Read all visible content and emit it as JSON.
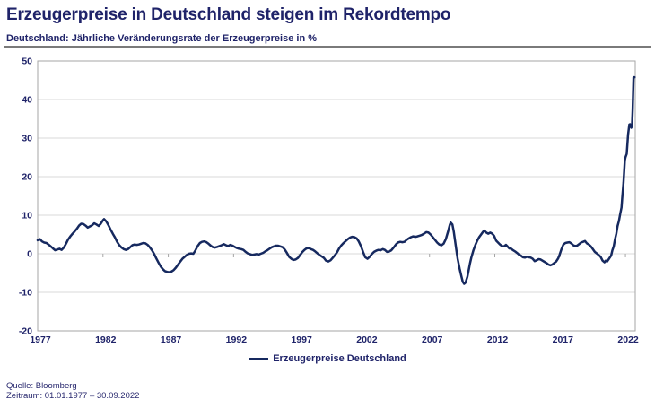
{
  "header": {
    "title": "Erzeugerpreise in Deutschland steigen im Rekordtempo",
    "subtitle": "Deutschland: Jährliche Veränderungsrate der Erzeugerpreise in %"
  },
  "footer": {
    "source": "Quelle: Bloomberg",
    "period": "Zeitraum: 01.01.1977 – 30.09.2022"
  },
  "colors": {
    "navy_text": "#1f2369",
    "line": "#16295f",
    "grid": "#d9d9d9",
    "axis": "#a6a6a6",
    "divider": "#7a7a7a"
  },
  "chart_data": {
    "type": "line",
    "title": "Deutschland: Jährliche Veränderungsrate der Erzeugerpreise in %",
    "legend": "Erzeugerpreise Deutschland",
    "legend_position": "bottom",
    "xlabel": "",
    "ylabel": "",
    "grid": true,
    "xlim": [
      1977,
      2022.75
    ],
    "ylim": [
      -20,
      50
    ],
    "yticks": [
      50,
      40,
      30,
      20,
      10,
      0,
      -10,
      -20
    ],
    "xticks": [
      1977,
      1982,
      1987,
      1992,
      1997,
      2002,
      2007,
      2012,
      2017,
      2022
    ],
    "series": [
      {
        "name": "Erzeugerpreise Deutschland",
        "points": [
          [
            1977.0,
            3.5
          ],
          [
            1977.17,
            3.8
          ],
          [
            1977.33,
            3.2
          ],
          [
            1977.5,
            2.9
          ],
          [
            1977.67,
            2.8
          ],
          [
            1977.83,
            2.4
          ],
          [
            1978.0,
            1.9
          ],
          [
            1978.17,
            1.4
          ],
          [
            1978.33,
            0.9
          ],
          [
            1978.5,
            1.1
          ],
          [
            1978.67,
            1.3
          ],
          [
            1978.83,
            1.0
          ],
          [
            1979.0,
            1.6
          ],
          [
            1979.17,
            2.6
          ],
          [
            1979.33,
            3.7
          ],
          [
            1979.5,
            4.5
          ],
          [
            1979.67,
            5.2
          ],
          [
            1979.83,
            5.8
          ],
          [
            1980.0,
            6.5
          ],
          [
            1980.17,
            7.3
          ],
          [
            1980.33,
            7.8
          ],
          [
            1980.5,
            7.7
          ],
          [
            1980.67,
            7.3
          ],
          [
            1980.83,
            6.8
          ],
          [
            1981.0,
            7.1
          ],
          [
            1981.17,
            7.4
          ],
          [
            1981.33,
            7.9
          ],
          [
            1981.5,
            7.6
          ],
          [
            1981.67,
            7.2
          ],
          [
            1981.83,
            7.8
          ],
          [
            1982.0,
            8.7
          ],
          [
            1982.08,
            9.0
          ],
          [
            1982.25,
            8.4
          ],
          [
            1982.42,
            7.4
          ],
          [
            1982.58,
            6.3
          ],
          [
            1982.75,
            5.2
          ],
          [
            1982.92,
            4.2
          ],
          [
            1983.08,
            3.1
          ],
          [
            1983.25,
            2.2
          ],
          [
            1983.42,
            1.6
          ],
          [
            1983.58,
            1.2
          ],
          [
            1983.75,
            1.0
          ],
          [
            1983.92,
            1.2
          ],
          [
            1984.08,
            1.7
          ],
          [
            1984.25,
            2.2
          ],
          [
            1984.42,
            2.4
          ],
          [
            1984.58,
            2.3
          ],
          [
            1984.75,
            2.4
          ],
          [
            1984.92,
            2.6
          ],
          [
            1985.08,
            2.8
          ],
          [
            1985.25,
            2.7
          ],
          [
            1985.42,
            2.3
          ],
          [
            1985.58,
            1.7
          ],
          [
            1985.75,
            0.9
          ],
          [
            1985.92,
            -0.1
          ],
          [
            1986.08,
            -1.2
          ],
          [
            1986.25,
            -2.3
          ],
          [
            1986.42,
            -3.3
          ],
          [
            1986.58,
            -4.0
          ],
          [
            1986.75,
            -4.5
          ],
          [
            1986.92,
            -4.7
          ],
          [
            1987.08,
            -4.8
          ],
          [
            1987.25,
            -4.6
          ],
          [
            1987.42,
            -4.2
          ],
          [
            1987.58,
            -3.6
          ],
          [
            1987.75,
            -2.8
          ],
          [
            1987.92,
            -2.0
          ],
          [
            1988.08,
            -1.3
          ],
          [
            1988.25,
            -0.8
          ],
          [
            1988.42,
            -0.3
          ],
          [
            1988.58,
            0.0
          ],
          [
            1988.75,
            0.1
          ],
          [
            1988.92,
            0.0
          ],
          [
            1989.08,
            0.9
          ],
          [
            1989.25,
            2.0
          ],
          [
            1989.42,
            2.8
          ],
          [
            1989.58,
            3.1
          ],
          [
            1989.75,
            3.2
          ],
          [
            1989.92,
            3.0
          ],
          [
            1990.08,
            2.6
          ],
          [
            1990.25,
            2.1
          ],
          [
            1990.42,
            1.7
          ],
          [
            1990.58,
            1.6
          ],
          [
            1990.75,
            1.8
          ],
          [
            1990.92,
            2.0
          ],
          [
            1991.08,
            2.2
          ],
          [
            1991.25,
            2.5
          ],
          [
            1991.42,
            2.2
          ],
          [
            1991.58,
            2.0
          ],
          [
            1991.75,
            2.3
          ],
          [
            1991.92,
            2.1
          ],
          [
            1992.08,
            1.8
          ],
          [
            1992.25,
            1.5
          ],
          [
            1992.42,
            1.3
          ],
          [
            1992.58,
            1.2
          ],
          [
            1992.75,
            1.0
          ],
          [
            1992.92,
            0.5
          ],
          [
            1993.08,
            0.1
          ],
          [
            1993.25,
            -0.1
          ],
          [
            1993.42,
            -0.3
          ],
          [
            1993.58,
            -0.2
          ],
          [
            1993.75,
            -0.1
          ],
          [
            1993.92,
            -0.2
          ],
          [
            1994.08,
            0.0
          ],
          [
            1994.25,
            0.2
          ],
          [
            1994.42,
            0.6
          ],
          [
            1994.58,
            0.9
          ],
          [
            1994.75,
            1.3
          ],
          [
            1994.92,
            1.7
          ],
          [
            1995.08,
            1.9
          ],
          [
            1995.25,
            2.1
          ],
          [
            1995.42,
            2.1
          ],
          [
            1995.58,
            1.9
          ],
          [
            1995.75,
            1.7
          ],
          [
            1995.92,
            1.1
          ],
          [
            1996.08,
            0.2
          ],
          [
            1996.25,
            -0.8
          ],
          [
            1996.42,
            -1.3
          ],
          [
            1996.58,
            -1.6
          ],
          [
            1996.75,
            -1.5
          ],
          [
            1996.92,
            -1.1
          ],
          [
            1997.08,
            -0.4
          ],
          [
            1997.25,
            0.4
          ],
          [
            1997.42,
            1.0
          ],
          [
            1997.58,
            1.4
          ],
          [
            1997.75,
            1.5
          ],
          [
            1997.92,
            1.2
          ],
          [
            1998.08,
            1.0
          ],
          [
            1998.25,
            0.6
          ],
          [
            1998.42,
            0.1
          ],
          [
            1998.58,
            -0.3
          ],
          [
            1998.75,
            -0.7
          ],
          [
            1998.92,
            -1.1
          ],
          [
            1999.08,
            -1.8
          ],
          [
            1999.25,
            -2.0
          ],
          [
            1999.42,
            -1.7
          ],
          [
            1999.58,
            -1.1
          ],
          [
            1999.75,
            -0.4
          ],
          [
            1999.92,
            0.4
          ],
          [
            2000.08,
            1.4
          ],
          [
            2000.25,
            2.2
          ],
          [
            2000.42,
            2.8
          ],
          [
            2000.58,
            3.3
          ],
          [
            2000.75,
            3.8
          ],
          [
            2000.92,
            4.2
          ],
          [
            2001.08,
            4.4
          ],
          [
            2001.25,
            4.3
          ],
          [
            2001.42,
            4.0
          ],
          [
            2001.58,
            3.2
          ],
          [
            2001.75,
            2.0
          ],
          [
            2001.92,
            0.4
          ],
          [
            2002.08,
            -0.9
          ],
          [
            2002.25,
            -1.3
          ],
          [
            2002.42,
            -0.8
          ],
          [
            2002.58,
            -0.1
          ],
          [
            2002.75,
            0.5
          ],
          [
            2002.92,
            0.8
          ],
          [
            2003.08,
            1.0
          ],
          [
            2003.25,
            0.9
          ],
          [
            2003.42,
            1.2
          ],
          [
            2003.58,
            1.0
          ],
          [
            2003.75,
            0.5
          ],
          [
            2003.92,
            0.6
          ],
          [
            2004.08,
            0.9
          ],
          [
            2004.25,
            1.6
          ],
          [
            2004.42,
            2.4
          ],
          [
            2004.58,
            2.9
          ],
          [
            2004.75,
            3.1
          ],
          [
            2004.92,
            3.0
          ],
          [
            2005.08,
            3.1
          ],
          [
            2005.25,
            3.6
          ],
          [
            2005.42,
            4.0
          ],
          [
            2005.58,
            4.3
          ],
          [
            2005.75,
            4.5
          ],
          [
            2005.92,
            4.4
          ],
          [
            2006.08,
            4.5
          ],
          [
            2006.25,
            4.7
          ],
          [
            2006.42,
            4.9
          ],
          [
            2006.58,
            5.2
          ],
          [
            2006.75,
            5.6
          ],
          [
            2006.92,
            5.5
          ],
          [
            2007.08,
            5.0
          ],
          [
            2007.25,
            4.3
          ],
          [
            2007.42,
            3.6
          ],
          [
            2007.58,
            2.9
          ],
          [
            2007.75,
            2.4
          ],
          [
            2007.92,
            2.2
          ],
          [
            2008.08,
            2.6
          ],
          [
            2008.25,
            3.8
          ],
          [
            2008.42,
            5.8
          ],
          [
            2008.55,
            7.5
          ],
          [
            2008.62,
            8.1
          ],
          [
            2008.75,
            7.6
          ],
          [
            2008.85,
            5.8
          ],
          [
            2008.95,
            3.5
          ],
          [
            2009.05,
            1.0
          ],
          [
            2009.15,
            -1.2
          ],
          [
            2009.3,
            -3.8
          ],
          [
            2009.45,
            -6.0
          ],
          [
            2009.55,
            -7.3
          ],
          [
            2009.65,
            -7.8
          ],
          [
            2009.75,
            -7.5
          ],
          [
            2009.9,
            -6.0
          ],
          [
            2010.0,
            -4.2
          ],
          [
            2010.1,
            -2.5
          ],
          [
            2010.2,
            -1.0
          ],
          [
            2010.35,
            0.8
          ],
          [
            2010.5,
            2.2
          ],
          [
            2010.65,
            3.4
          ],
          [
            2010.8,
            4.3
          ],
          [
            2010.95,
            5.0
          ],
          [
            2011.1,
            5.7
          ],
          [
            2011.2,
            6.0
          ],
          [
            2011.35,
            5.5
          ],
          [
            2011.5,
            5.2
          ],
          [
            2011.65,
            5.5
          ],
          [
            2011.8,
            5.2
          ],
          [
            2011.95,
            4.6
          ],
          [
            2012.1,
            3.4
          ],
          [
            2012.25,
            2.9
          ],
          [
            2012.4,
            2.4
          ],
          [
            2012.55,
            2.0
          ],
          [
            2012.7,
            1.9
          ],
          [
            2012.85,
            2.3
          ],
          [
            2012.95,
            2.0
          ],
          [
            2013.1,
            1.4
          ],
          [
            2013.25,
            1.3
          ],
          [
            2013.4,
            0.9
          ],
          [
            2013.55,
            0.6
          ],
          [
            2013.7,
            0.2
          ],
          [
            2013.85,
            -0.2
          ],
          [
            2014.0,
            -0.5
          ],
          [
            2014.15,
            -0.9
          ],
          [
            2014.3,
            -1.0
          ],
          [
            2014.45,
            -0.8
          ],
          [
            2014.6,
            -0.9
          ],
          [
            2014.75,
            -1.0
          ],
          [
            2014.9,
            -1.3
          ],
          [
            2015.05,
            -1.9
          ],
          [
            2015.2,
            -1.7
          ],
          [
            2015.35,
            -1.4
          ],
          [
            2015.5,
            -1.5
          ],
          [
            2015.65,
            -1.8
          ],
          [
            2015.8,
            -2.1
          ],
          [
            2015.95,
            -2.4
          ],
          [
            2016.1,
            -2.8
          ],
          [
            2016.25,
            -3.0
          ],
          [
            2016.4,
            -2.8
          ],
          [
            2016.55,
            -2.4
          ],
          [
            2016.7,
            -2.0
          ],
          [
            2016.85,
            -1.2
          ],
          [
            2016.95,
            -0.3
          ],
          [
            2017.1,
            1.2
          ],
          [
            2017.25,
            2.4
          ],
          [
            2017.4,
            2.8
          ],
          [
            2017.55,
            2.9
          ],
          [
            2017.7,
            3.0
          ],
          [
            2017.85,
            2.7
          ],
          [
            2018.0,
            2.2
          ],
          [
            2018.15,
            2.0
          ],
          [
            2018.3,
            2.1
          ],
          [
            2018.45,
            2.5
          ],
          [
            2018.6,
            2.9
          ],
          [
            2018.75,
            3.1
          ],
          [
            2018.9,
            3.3
          ],
          [
            2019.05,
            2.7
          ],
          [
            2019.2,
            2.4
          ],
          [
            2019.35,
            1.9
          ],
          [
            2019.5,
            1.2
          ],
          [
            2019.65,
            0.5
          ],
          [
            2019.8,
            0.1
          ],
          [
            2019.95,
            -0.3
          ],
          [
            2020.1,
            -0.8
          ],
          [
            2020.25,
            -1.8
          ],
          [
            2020.4,
            -2.2
          ],
          [
            2020.5,
            -1.8
          ],
          [
            2020.6,
            -2.0
          ],
          [
            2020.7,
            -1.5
          ],
          [
            2020.8,
            -1.0
          ],
          [
            2020.9,
            -0.5
          ],
          [
            2021.0,
            0.9
          ],
          [
            2021.1,
            1.9
          ],
          [
            2021.2,
            3.7
          ],
          [
            2021.3,
            5.2
          ],
          [
            2021.4,
            7.2
          ],
          [
            2021.5,
            8.5
          ],
          [
            2021.6,
            10.4
          ],
          [
            2021.7,
            12.0
          ],
          [
            2021.75,
            14.2
          ],
          [
            2021.85,
            18.4
          ],
          [
            2021.95,
            24.2
          ],
          [
            2022.0,
            25.0
          ],
          [
            2022.1,
            25.9
          ],
          [
            2022.2,
            30.9
          ],
          [
            2022.3,
            33.5
          ],
          [
            2022.35,
            33.6
          ],
          [
            2022.45,
            32.7
          ],
          [
            2022.5,
            33.0
          ],
          [
            2022.55,
            37.2
          ],
          [
            2022.62,
            45.8
          ],
          [
            2022.7,
            45.8
          ]
        ]
      }
    ]
  }
}
